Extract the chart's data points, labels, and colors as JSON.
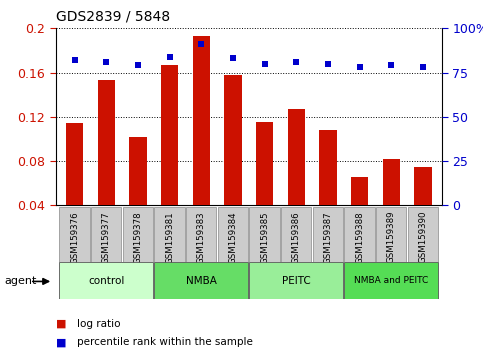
{
  "title": "GDS2839 / 5848",
  "categories": [
    "GSM159376",
    "GSM159377",
    "GSM159378",
    "GSM159381",
    "GSM159383",
    "GSM159384",
    "GSM159385",
    "GSM159386",
    "GSM159387",
    "GSM159388",
    "GSM159389",
    "GSM159390"
  ],
  "log_ratio": [
    0.114,
    0.153,
    0.102,
    0.167,
    0.193,
    0.158,
    0.115,
    0.127,
    0.108,
    0.066,
    0.082,
    0.075
  ],
  "percentile_rank": [
    82,
    81,
    79,
    84,
    91,
    83,
    80,
    81,
    80,
    78,
    79,
    78
  ],
  "bar_color": "#cc1100",
  "dot_color": "#0000cc",
  "ylim_left": [
    0.04,
    0.2
  ],
  "ylim_right": [
    0,
    100
  ],
  "yticks_left": [
    0.04,
    0.08,
    0.12,
    0.16,
    0.2
  ],
  "yticks_right": [
    0,
    25,
    50,
    75,
    100
  ],
  "groups": [
    {
      "label": "control",
      "start": 0,
      "end": 3,
      "color": "#ccffcc"
    },
    {
      "label": "NMBA",
      "start": 3,
      "end": 6,
      "color": "#66dd66"
    },
    {
      "label": "PEITC",
      "start": 6,
      "end": 9,
      "color": "#99ee99"
    },
    {
      "label": "NMBA and PEITC",
      "start": 9,
      "end": 12,
      "color": "#55dd55"
    }
  ],
  "agent_label": "agent",
  "legend_items": [
    {
      "label": "log ratio",
      "color": "#cc1100",
      "marker": "s"
    },
    {
      "label": "percentile rank within the sample",
      "color": "#0000cc",
      "marker": "s"
    }
  ],
  "background_plot": "#ffffff",
  "background_xtick": "#cccccc",
  "bar_width": 0.55
}
